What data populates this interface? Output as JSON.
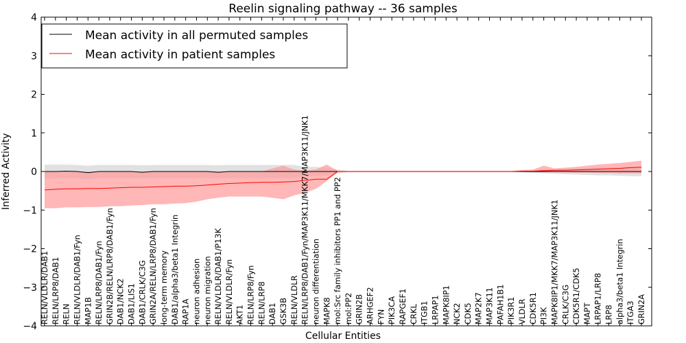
{
  "chart_data": {
    "type": "line",
    "title": "Reelin signaling pathway -- 36 samples",
    "xlabel": "Cellular Entities",
    "ylabel": "Inferred Activity",
    "ylim": [
      -4,
      4
    ],
    "yticks": [
      -4,
      -3,
      -2,
      -1,
      0,
      1,
      2,
      3,
      4
    ],
    "legend_position": "top-left",
    "categories": [
      "RELN/VLDLR/DAB1",
      "RELN/LRP8/DAB1",
      "RELN",
      "RELN/VLDLR/DAB1/Fyn",
      "MAP1B",
      "RELN/LRP8/DAB1/Fyn",
      "GRIN2B/RELN/LRP8/DAB1/Fyn",
      "DAB1/NCK2",
      "DAB1/LIS1",
      "DAB1/CRLK/C3G",
      "GRIN2A/RELN/LRP8/DAB1/Fyn",
      "long-term memory",
      "DAB1/alpha3/beta1 Integrin",
      "RAP1A",
      "neuron adhesion",
      "neuron migration",
      "RELN/VLDLR/DAB1/P13K",
      "RELN/VLDLR/Fyn",
      "AKT1",
      "RELN/LRP8/Fyn",
      "RELN/LRP8",
      "DAB1",
      "GSK3B",
      "RELN/VLDLR",
      "RELN/LRP8/DAB1/Fyn/MAP3K11/MKK7/MAP3K11/JNK1",
      "neuron differentiation",
      "MAPK8",
      "mol:Src family inhibitors PP1 and PP2",
      "mol:PP2",
      "GRIN2B",
      "ARHGEF2",
      "FYN",
      "PIK3CA",
      "RAPGEF1",
      "CRKL",
      "ITGB1",
      "LRPAP1",
      "MAPK8IP1",
      "NCK2",
      "CDK5",
      "MAP2K7",
      "MAP3K11",
      "PAFAH1B1",
      "PIK3R1",
      "VLDLR",
      "CDK5R1",
      "PI3K",
      "MAPK8IP1/MKK7/MAP3K11/JNK1",
      "CRLK/C3G",
      "CDK5R1/CDK5",
      "MAPT",
      "LRPAP1/LRP8",
      "LRP8",
      "alpha3/beta1 Integrin",
      "ITGA3",
      "GRIN2A"
    ],
    "series": [
      {
        "name": "Mean activity in all permuted samples",
        "color": "#000000",
        "band_color": "#c8c8c8",
        "values": [
          0.0,
          0.0,
          0.01,
          0.0,
          -0.03,
          0.0,
          0.0,
          0.0,
          0.0,
          -0.02,
          0.0,
          0.0,
          0.0,
          0.0,
          0.0,
          0.0,
          -0.02,
          0.0,
          0.0,
          0.0,
          0.0,
          0.0,
          0.0,
          0.0,
          0.0,
          0.0,
          0.0,
          0.0,
          0.0,
          0.0,
          0.0,
          0.0,
          0.0,
          0.0,
          0.0,
          0.0,
          0.0,
          0.0,
          0.0,
          0.0,
          0.0,
          0.0,
          0.0,
          0.0,
          0.0,
          0.0,
          0.0,
          0.0,
          0.0,
          0.0,
          0.0,
          0.0,
          0.0,
          0.0,
          0.0,
          0.0
        ],
        "lower": [
          -0.18,
          -0.18,
          -0.17,
          -0.17,
          -0.2,
          -0.17,
          -0.17,
          -0.17,
          -0.17,
          -0.18,
          -0.17,
          -0.17,
          -0.17,
          -0.17,
          -0.17,
          -0.17,
          -0.18,
          -0.17,
          -0.17,
          -0.17,
          -0.17,
          -0.17,
          -0.17,
          -0.17,
          -0.12,
          -0.12,
          -0.1,
          -0.05,
          -0.02,
          -0.02,
          -0.02,
          -0.02,
          -0.02,
          -0.02,
          -0.02,
          -0.02,
          -0.02,
          -0.02,
          -0.02,
          -0.02,
          -0.02,
          -0.02,
          -0.02,
          -0.02,
          -0.02,
          -0.04,
          -0.05,
          -0.06,
          -0.07,
          -0.08,
          -0.09,
          -0.1,
          -0.1,
          -0.11,
          -0.12,
          -0.12
        ],
        "upper": [
          0.18,
          0.18,
          0.18,
          0.17,
          0.15,
          0.17,
          0.17,
          0.17,
          0.17,
          0.16,
          0.17,
          0.17,
          0.17,
          0.17,
          0.17,
          0.17,
          0.16,
          0.17,
          0.17,
          0.17,
          0.17,
          0.17,
          0.17,
          0.17,
          0.12,
          0.12,
          0.1,
          0.05,
          0.02,
          0.02,
          0.02,
          0.02,
          0.02,
          0.02,
          0.02,
          0.02,
          0.02,
          0.02,
          0.02,
          0.02,
          0.02,
          0.02,
          0.02,
          0.02,
          0.02,
          0.04,
          0.05,
          0.06,
          0.07,
          0.08,
          0.09,
          0.1,
          0.1,
          0.11,
          0.12,
          0.12
        ]
      },
      {
        "name": "Mean activity in patient samples",
        "color": "#ff0000",
        "band_color": "#ff9999",
        "values": [
          -0.48,
          -0.46,
          -0.45,
          -0.45,
          -0.44,
          -0.44,
          -0.43,
          -0.42,
          -0.41,
          -0.41,
          -0.4,
          -0.39,
          -0.38,
          -0.38,
          -0.37,
          -0.35,
          -0.33,
          -0.31,
          -0.3,
          -0.29,
          -0.28,
          -0.28,
          -0.27,
          -0.26,
          -0.23,
          -0.2,
          -0.2,
          0.0,
          0.0,
          0.0,
          0.0,
          0.0,
          0.0,
          0.0,
          0.0,
          0.0,
          0.0,
          0.0,
          0.0,
          0.0,
          0.0,
          0.0,
          0.0,
          0.0,
          0.01,
          0.01,
          0.02,
          0.03,
          0.03,
          0.04,
          0.05,
          0.06,
          0.07,
          0.08,
          0.1,
          0.11
        ],
        "lower": [
          -0.95,
          -0.95,
          -0.93,
          -0.93,
          -0.92,
          -0.92,
          -0.9,
          -0.9,
          -0.88,
          -0.87,
          -0.85,
          -0.85,
          -0.83,
          -0.82,
          -0.78,
          -0.72,
          -0.68,
          -0.65,
          -0.65,
          -0.65,
          -0.65,
          -0.68,
          -0.72,
          -0.62,
          -0.55,
          -0.45,
          -0.25,
          -0.02,
          -0.01,
          -0.01,
          -0.01,
          -0.01,
          -0.01,
          -0.01,
          -0.01,
          -0.01,
          -0.01,
          -0.01,
          -0.01,
          -0.01,
          -0.01,
          -0.01,
          -0.01,
          -0.01,
          -0.01,
          -0.02,
          -0.02,
          -0.02,
          -0.02,
          -0.03,
          -0.03,
          -0.04,
          -0.04,
          -0.05,
          -0.05,
          -0.05
        ],
        "upper": [
          0.0,
          0.0,
          0.0,
          0.0,
          0.0,
          0.0,
          0.0,
          0.0,
          0.0,
          0.0,
          0.0,
          0.0,
          0.0,
          0.0,
          0.0,
          0.0,
          0.0,
          0.0,
          0.0,
          0.0,
          0.0,
          0.08,
          0.15,
          0.05,
          0.02,
          0.05,
          0.18,
          0.02,
          0.01,
          0.01,
          0.01,
          0.01,
          0.01,
          0.01,
          0.01,
          0.01,
          0.01,
          0.01,
          0.01,
          0.01,
          0.01,
          0.01,
          0.01,
          0.01,
          0.04,
          0.05,
          0.15,
          0.08,
          0.1,
          0.12,
          0.15,
          0.18,
          0.2,
          0.22,
          0.25,
          0.28
        ]
      }
    ]
  }
}
